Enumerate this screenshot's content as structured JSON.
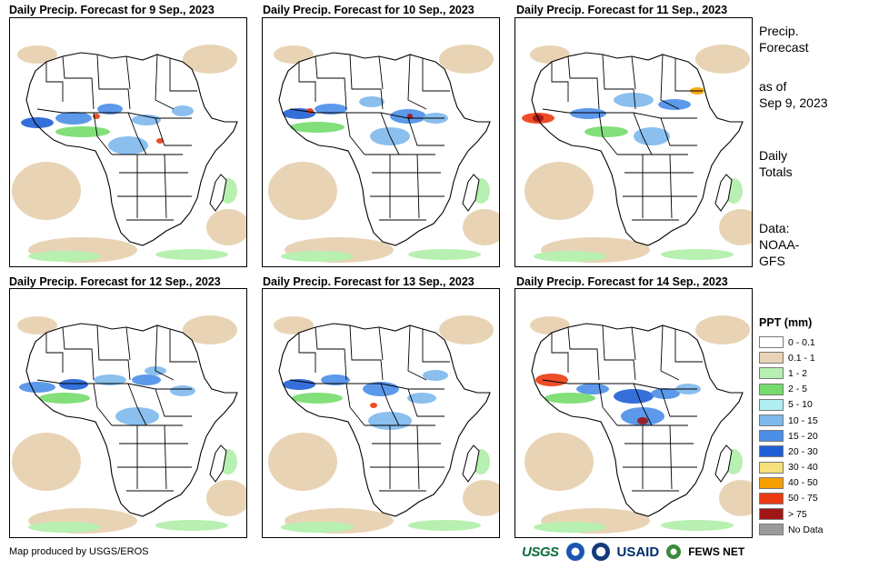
{
  "panels": [
    {
      "title": "Daily Precip. Forecast for 9 Sep., 2023"
    },
    {
      "title": "Daily Precip. Forecast for 10 Sep., 2023"
    },
    {
      "title": "Daily Precip. Forecast for 11 Sep., 2023"
    },
    {
      "title": "Daily Precip. Forecast for 12 Sep., 2023"
    },
    {
      "title": "Daily Precip. Forecast for 13 Sep., 2023"
    },
    {
      "title": "Daily Precip. Forecast for 14 Sep., 2023"
    }
  ],
  "sidebar": {
    "heading_line1": "Precip.",
    "heading_line2": "Forecast",
    "asof_line1": "as of",
    "asof_line2": "Sep 9, 2023",
    "totals_line1": "Daily",
    "totals_line2": "Totals",
    "data_line1": "Data:",
    "data_line2": "NOAA-",
    "data_line3": "GFS"
  },
  "legend": {
    "title": "PPT (mm)",
    "items": [
      {
        "label": "0 - 0.1",
        "color": "#ffffff"
      },
      {
        "label": "0.1 - 1",
        "color": "#e8d4b5"
      },
      {
        "label": "1 - 2",
        "color": "#b7f0b0"
      },
      {
        "label": "2 - 5",
        "color": "#74dc6c"
      },
      {
        "label": "5 - 10",
        "color": "#b0eef2"
      },
      {
        "label": "10 - 15",
        "color": "#7db8ec"
      },
      {
        "label": "15 - 20",
        "color": "#4a8ee8"
      },
      {
        "label": "20 - 30",
        "color": "#1f5fd6"
      },
      {
        "label": "30 - 40",
        "color": "#f5e07c"
      },
      {
        "label": "40 - 50",
        "color": "#f5a000"
      },
      {
        "label": "50 - 75",
        "color": "#ec3a10"
      },
      {
        "label": "> 75",
        "color": "#a01515"
      },
      {
        "label": "No Data",
        "color": "#9a9a9a"
      }
    ]
  },
  "footer": {
    "credit": "Map produced by USGS/EROS",
    "logo_usgs": "USGS",
    "logo_usaid": "USAID",
    "logo_fews": "FEWS NET"
  }
}
